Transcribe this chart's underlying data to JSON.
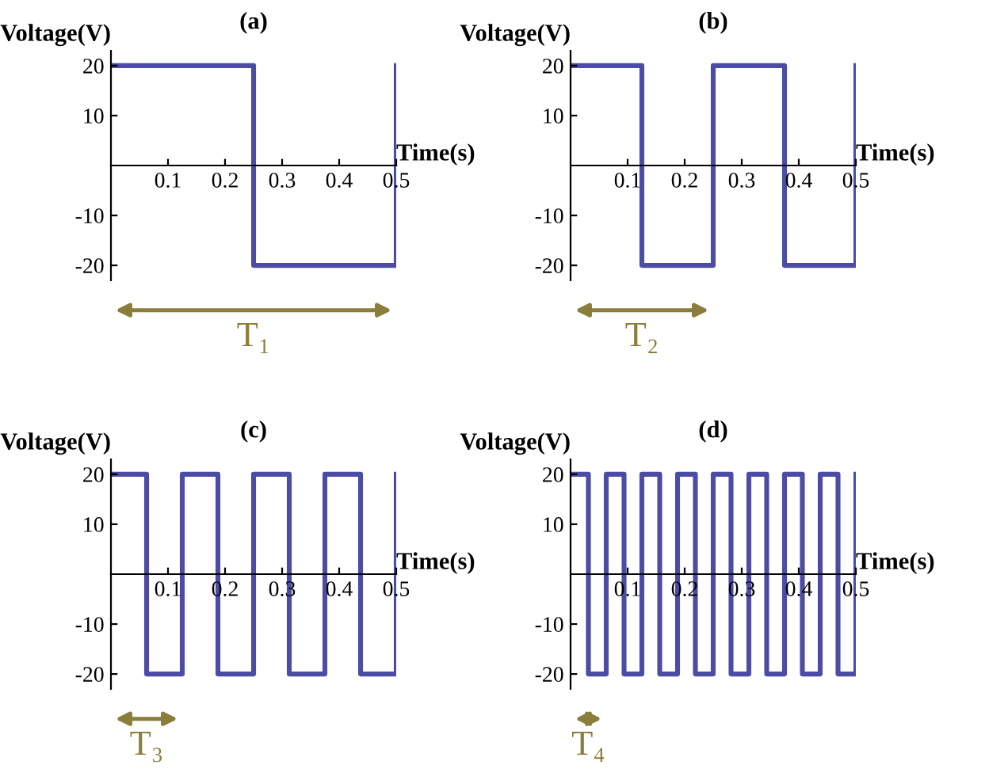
{
  "chart_data": [
    {
      "type": "step",
      "title": "(a)",
      "xlabel": "Time(s)",
      "ylabel": "Voltage(V)",
      "x": [
        0,
        0.25,
        0.5
      ],
      "values": [
        20,
        -20,
        20
      ],
      "color": "#4c4ca6",
      "xlim": [
        0,
        0.5
      ],
      "ylim": [
        -23,
        23
      ],
      "xticks": [
        0.1,
        0.2,
        0.3,
        0.4,
        0.5
      ],
      "yticks": [
        -20,
        -10,
        10,
        20
      ],
      "annotations": [
        "T₁"
      ]
    },
    {
      "type": "step",
      "title": "(b)",
      "xlabel": "Time(s)",
      "ylabel": "Voltage(V)",
      "x": [
        0,
        0.125,
        0.25,
        0.375,
        0.5
      ],
      "values": [
        20,
        -20,
        20,
        -20,
        20
      ],
      "color": "#4c4ca6",
      "xlim": [
        0,
        0.5
      ],
      "ylim": [
        -23,
        23
      ],
      "xticks": [
        0.1,
        0.2,
        0.3,
        0.4,
        0.5
      ],
      "yticks": [
        -20,
        -10,
        10,
        20
      ],
      "annotations": [
        "T₂"
      ]
    },
    {
      "type": "step",
      "title": "(c)",
      "xlabel": "Time(s)",
      "ylabel": "Voltage(V)",
      "x": [
        0,
        0.0625,
        0.125,
        0.1875,
        0.25,
        0.3125,
        0.375,
        0.4375,
        0.5
      ],
      "values": [
        20,
        -20,
        20,
        -20,
        20,
        -20,
        20,
        -20,
        20
      ],
      "color": "#4c4ca6",
      "xlim": [
        0,
        0.5
      ],
      "ylim": [
        -23,
        23
      ],
      "xticks": [
        0.1,
        0.2,
        0.3,
        0.4,
        0.5
      ],
      "yticks": [
        -20,
        -10,
        10,
        20
      ],
      "annotations": [
        "T₃"
      ]
    },
    {
      "type": "step",
      "title": "(d)",
      "xlabel": "Time(s)",
      "ylabel": "Voltage(V)",
      "x": [
        0,
        0.03125,
        0.0625,
        0.09375,
        0.125,
        0.15625,
        0.1875,
        0.21875,
        0.25,
        0.28125,
        0.3125,
        0.34375,
        0.375,
        0.40625,
        0.4375,
        0.46875,
        0.5
      ],
      "values": [
        20,
        -20,
        20,
        -20,
        20,
        -20,
        20,
        -20,
        20,
        -20,
        20,
        -20,
        20,
        -20,
        20,
        -20,
        20
      ],
      "color": "#4c4ca6",
      "xlim": [
        0,
        0.5
      ],
      "ylim": [
        -23,
        23
      ],
      "xticks": [
        0.1,
        0.2,
        0.3,
        0.4,
        0.5
      ],
      "yticks": [
        -20,
        -10,
        10,
        20
      ],
      "annotations": [
        "T₄"
      ]
    }
  ]
}
